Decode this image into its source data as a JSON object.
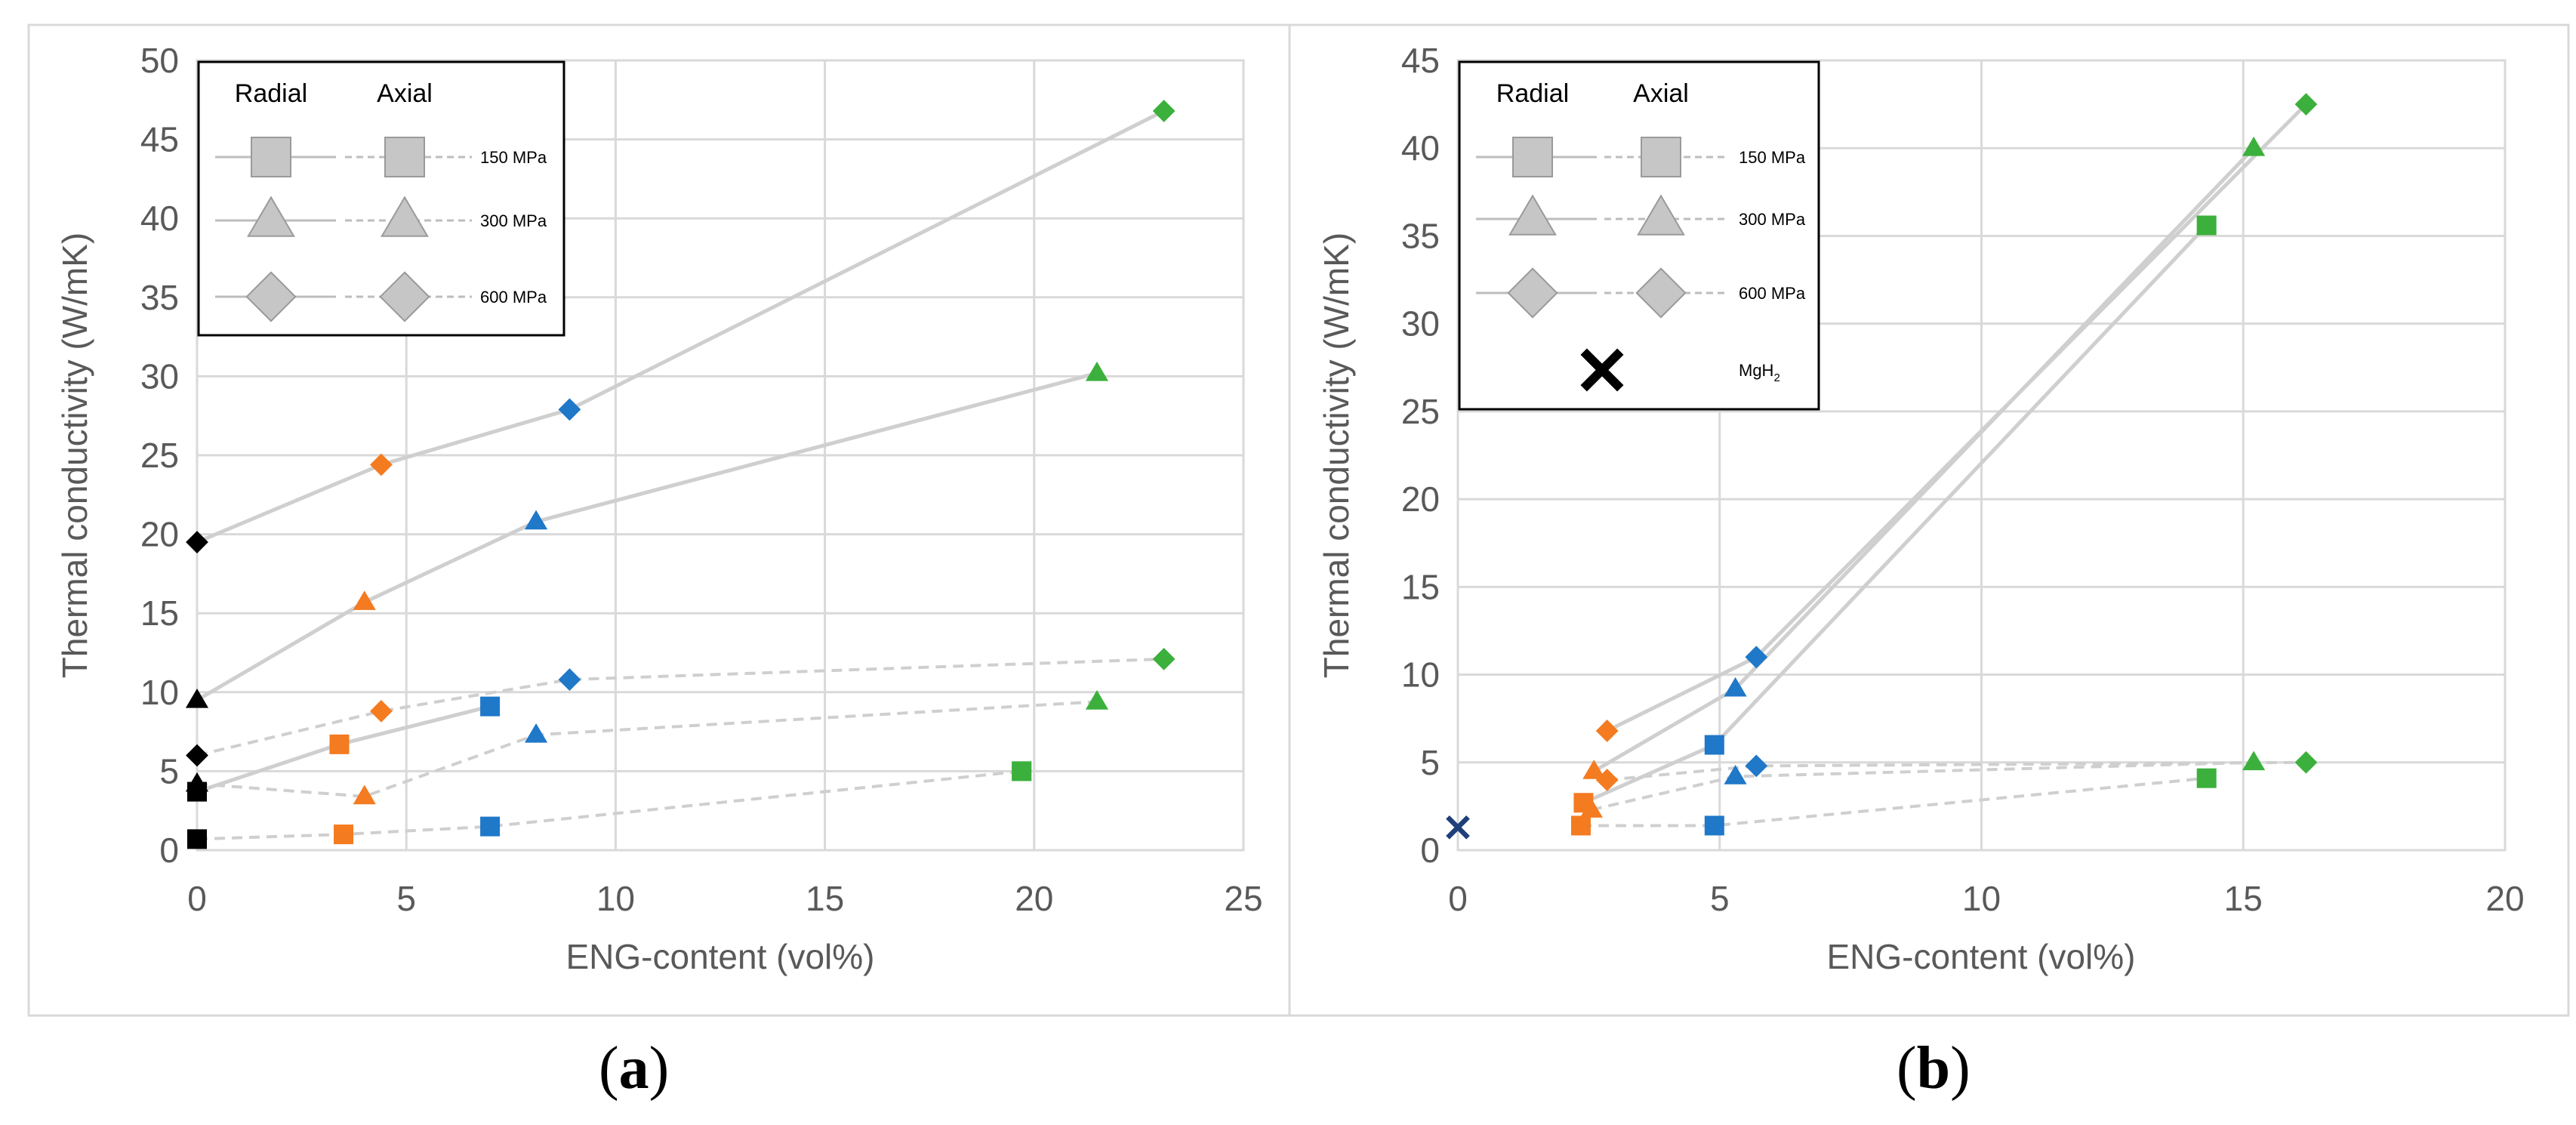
{
  "colors": {
    "black": "#000000",
    "orange": "#f47b20",
    "blue": "#1f78c8",
    "green": "#3cb03c",
    "navy": "#1f3f7a",
    "line": "#cfcfcf",
    "legend_marker": "#c6c6c6"
  },
  "captions": [
    "(a)",
    "(b)"
  ],
  "chart_data": [
    {
      "type": "scatter",
      "panel": "a",
      "title": "",
      "xlabel": "ENG-content (vol%)",
      "ylabel": "Thermal conductivity (W/mK)",
      "xlim": [
        0,
        25
      ],
      "ylim": [
        0,
        50
      ],
      "xticks": [
        "0",
        "5",
        "10",
        "15",
        "20",
        "25"
      ],
      "yticks": [
        "0",
        "5",
        "10",
        "15",
        "20",
        "25",
        "30",
        "35",
        "40",
        "45",
        "50"
      ],
      "legend": {
        "headers": [
          "Radial",
          "Axial"
        ],
        "entries": [
          {
            "marker": "square",
            "label": "150 MPa"
          },
          {
            "marker": "triangle",
            "label": "300 MPa"
          },
          {
            "marker": "diamond",
            "label": "600 MPa"
          }
        ]
      },
      "series": [
        {
          "name": "150 MPa Radial",
          "marker": "square",
          "line": "solid",
          "points": [
            [
              0,
              3.7
            ],
            [
              3.4,
              6.7
            ],
            [
              7.0,
              9.1
            ],
            [
              19.7,
              5.0
            ]
          ],
          "colors": [
            "black",
            "orange",
            "blue",
            "green"
          ],
          "line_to": 3
        },
        {
          "name": "150 MPa Axial",
          "marker": "square",
          "line": "dashed",
          "points": [
            [
              0,
              0.7
            ],
            [
              3.5,
              1.0
            ],
            [
              7.0,
              1.5
            ],
            [
              19.7,
              5.0
            ]
          ],
          "colors": [
            "black",
            "orange",
            "blue",
            "green"
          ],
          "line_to": 4
        },
        {
          "name": "300 MPa Radial",
          "marker": "triangle",
          "line": "solid",
          "points": [
            [
              0,
              9.5
            ],
            [
              4.0,
              15.7
            ],
            [
              8.1,
              20.8
            ],
            [
              21.5,
              30.2
            ]
          ],
          "colors": [
            "black",
            "orange",
            "blue",
            "green"
          ],
          "line_to": 4
        },
        {
          "name": "300 MPa Axial",
          "marker": "triangle",
          "line": "dashed",
          "points": [
            [
              0,
              4.2
            ],
            [
              4.0,
              3.4
            ],
            [
              8.1,
              7.3
            ],
            [
              21.5,
              9.4
            ]
          ],
          "colors": [
            "black",
            "orange",
            "blue",
            "green"
          ],
          "line_to": 4
        },
        {
          "name": "600 MPa Radial",
          "marker": "diamond",
          "line": "solid",
          "points": [
            [
              0,
              19.5
            ],
            [
              4.4,
              24.4
            ],
            [
              8.9,
              27.9
            ],
            [
              23.1,
              46.8
            ]
          ],
          "colors": [
            "black",
            "orange",
            "blue",
            "green"
          ],
          "line_to": 4
        },
        {
          "name": "600 MPa Axial",
          "marker": "diamond",
          "line": "dashed",
          "points": [
            [
              0,
              6.0
            ],
            [
              4.4,
              8.8
            ],
            [
              8.9,
              10.8
            ],
            [
              23.1,
              12.1
            ]
          ],
          "colors": [
            "black",
            "orange",
            "blue",
            "green"
          ],
          "line_to": 4
        }
      ]
    },
    {
      "type": "scatter",
      "panel": "b",
      "title": "",
      "xlabel": "ENG-content (vol%)",
      "ylabel": "Thermal conductivity (W/mK)",
      "xlim": [
        0,
        20
      ],
      "ylim": [
        0,
        45
      ],
      "xticks": [
        "0",
        "5",
        "10",
        "15",
        "20"
      ],
      "yticks": [
        "0",
        "5",
        "10",
        "15",
        "20",
        "25",
        "30",
        "35",
        "40",
        "45"
      ],
      "legend": {
        "headers": [
          "Radial",
          "Axial"
        ],
        "entries": [
          {
            "marker": "square",
            "label": "150 MPa"
          },
          {
            "marker": "triangle",
            "label": "300 MPa"
          },
          {
            "marker": "diamond",
            "label": "600 MPa"
          },
          {
            "marker": "cross",
            "label": "MgH",
            "sub": "2"
          }
        ]
      },
      "series": [
        {
          "name": "150 MPa Radial",
          "marker": "square",
          "line": "solid",
          "points": [
            [
              2.4,
              2.7
            ],
            [
              4.9,
              6.0
            ],
            [
              14.3,
              35.6
            ]
          ],
          "colors": [
            "orange",
            "blue",
            "green"
          ],
          "line_to": 3
        },
        {
          "name": "150 MPa Axial",
          "marker": "square",
          "line": "dashed",
          "points": [
            [
              2.35,
              1.4
            ],
            [
              4.9,
              1.4
            ],
            [
              14.3,
              4.1
            ]
          ],
          "colors": [
            "orange",
            "blue",
            "green"
          ],
          "line_to": 3
        },
        {
          "name": "300 MPa Radial",
          "marker": "triangle",
          "line": "solid",
          "points": [
            [
              2.6,
              4.5
            ],
            [
              5.3,
              9.2
            ],
            [
              15.2,
              40.0
            ]
          ],
          "colors": [
            "orange",
            "blue",
            "green"
          ],
          "line_to": 3
        },
        {
          "name": "300 MPa Axial",
          "marker": "triangle",
          "line": "dashed",
          "points": [
            [
              2.55,
              2.3
            ],
            [
              5.3,
              4.2
            ],
            [
              15.2,
              5.0
            ]
          ],
          "colors": [
            "orange",
            "blue",
            "green"
          ],
          "line_to": 3
        },
        {
          "name": "600 MPa Radial",
          "marker": "diamond",
          "line": "solid",
          "points": [
            [
              2.85,
              6.8
            ],
            [
              5.7,
              11.0
            ],
            [
              16.2,
              42.5
            ]
          ],
          "colors": [
            "orange",
            "blue",
            "green"
          ],
          "line_to": 3
        },
        {
          "name": "600 MPa Axial",
          "marker": "diamond",
          "line": "dashed",
          "points": [
            [
              2.85,
              4.0
            ],
            [
              5.7,
              4.8
            ],
            [
              16.2,
              5.0
            ]
          ],
          "colors": [
            "orange",
            "blue",
            "green"
          ],
          "line_to": 3
        },
        {
          "name": "MgH2",
          "marker": "cross",
          "line": "none",
          "points": [
            [
              0,
              1.3
            ]
          ],
          "colors": [
            "navy"
          ],
          "line_to": 0
        }
      ]
    }
  ]
}
